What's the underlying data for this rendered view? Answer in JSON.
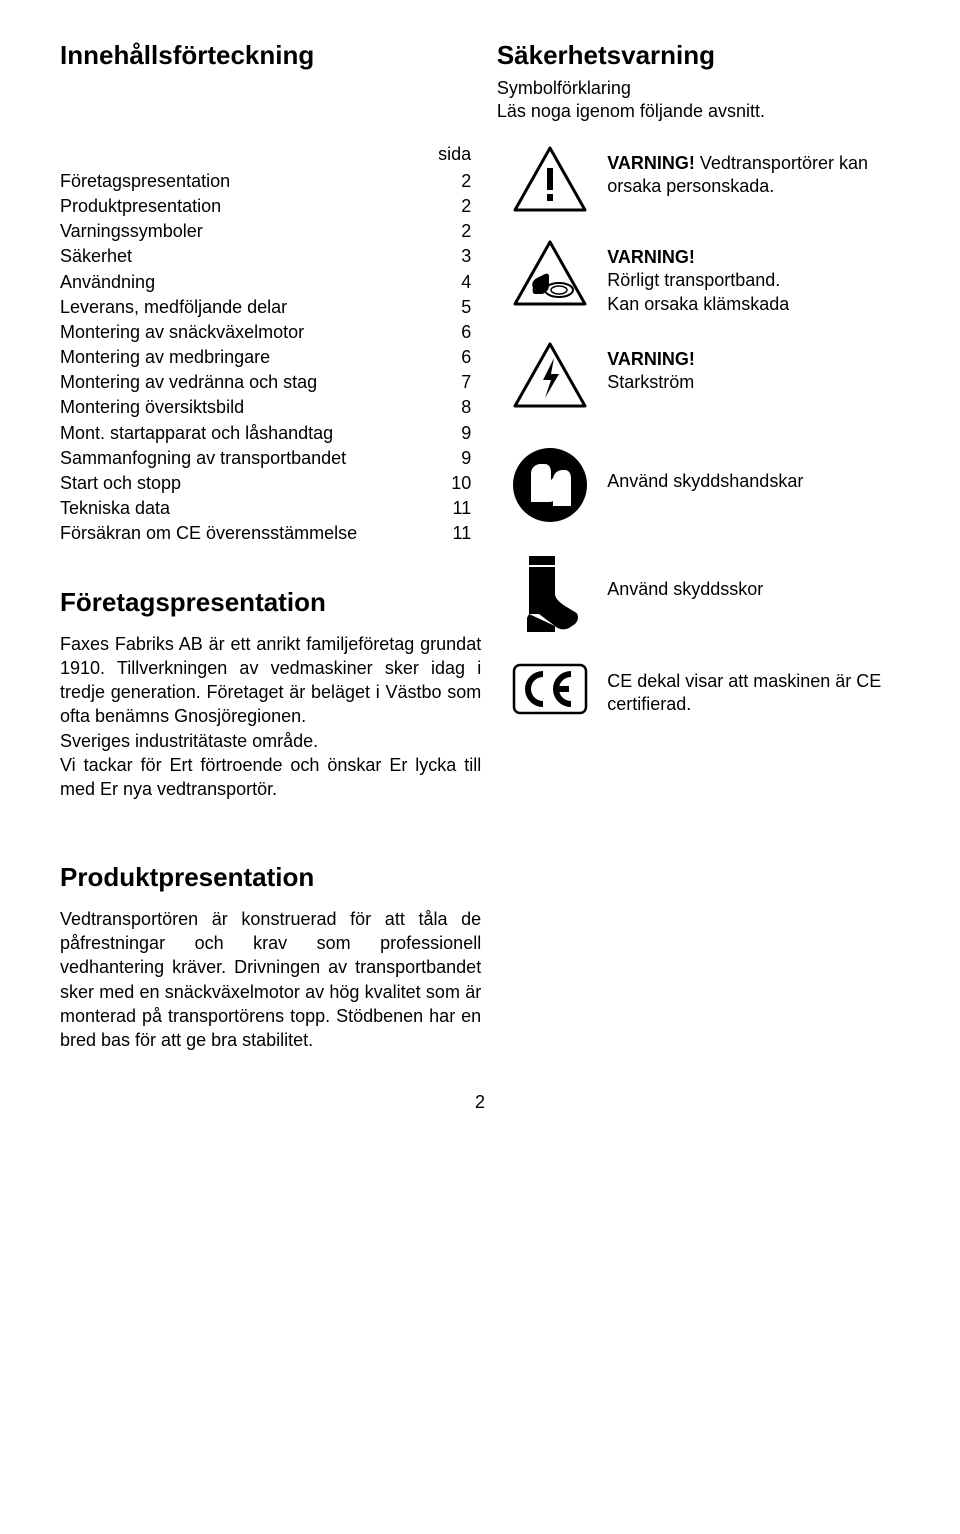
{
  "headings": {
    "toc": "Innehållsförteckning",
    "safety_warning": "Säkerhetsvarning",
    "sub1": "Symbolförklaring",
    "sub2": "Läs noga igenom följande avsnitt.",
    "company": "Företagspresentation",
    "product": "Produktpresentation"
  },
  "toc": {
    "sida_label": "sida",
    "items": [
      {
        "label": "Företagspresentation",
        "page": "2"
      },
      {
        "label": "Produktpresentation",
        "page": "2"
      },
      {
        "label": "Varningssymboler",
        "page": "2"
      },
      {
        "label": "Säkerhet",
        "page": "3"
      },
      {
        "label": "Användning",
        "page": "4"
      },
      {
        "label": "Leverans, medföljande delar",
        "page": "5"
      },
      {
        "label": "Montering av snäckväxelmotor",
        "page": "6"
      },
      {
        "label": "Montering av medbringare",
        "page": "6"
      },
      {
        "label": "Montering av vedränna och stag",
        "page": "7"
      },
      {
        "label": "Montering översiktsbild",
        "page": "8"
      },
      {
        "label": "Mont. startapparat och låshandtag",
        "page": "9"
      },
      {
        "label": "Sammanfogning av transportbandet",
        "page": "9"
      },
      {
        "label": "Start och stopp",
        "page": "10"
      },
      {
        "label": "Tekniska data",
        "page": "11"
      },
      {
        "label": "Försäkran om CE överensstämmelse",
        "page": "11"
      }
    ]
  },
  "warnings": {
    "w1_head": "VARNING!",
    "w1_body": " Vedtransportörer kan orsaka personskada.",
    "w2_head": "VARNING!",
    "w2_body1": "Rörligt transportband.",
    "w2_body2": "Kan orsaka klämskada",
    "w3_head": "VARNING!",
    "w3_body": "Starkström",
    "gloves": "Använd skyddshandskar",
    "boots": "Använd skyddsskor",
    "ce": "CE dekal visar att maskinen är CE certifierad."
  },
  "company_text": "Faxes Fabriks AB är ett anrikt familjeföretag grundat 1910. Tillverkningen av vedmaskiner sker idag i tredje generation. Företaget är beläget i Västbo som ofta benämns Gnosjöregionen.\nSveriges industritätaste område.\nVi tackar för Ert förtroende och önskar Er lycka till med Er nya vedtransportör.",
  "product_text": "Vedtransportören är konstruerad för att tåla de påfrestningar och krav som professionell vedhantering kräver. Drivningen av transportbandet sker med en snäckväxelmotor av hög kvalitet som är monterad på transportörens topp. Stödbenen har en bred bas för att ge bra stabilitet.",
  "page_number": "2",
  "colors": {
    "fg": "#000000",
    "bg": "#ffffff"
  }
}
